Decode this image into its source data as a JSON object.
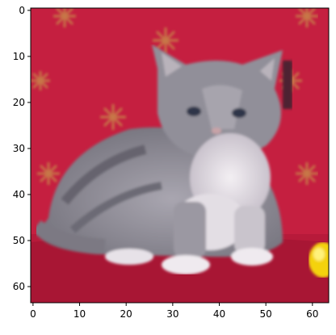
{
  "image": {
    "subject": "kitten-photo",
    "pixel_resolution": [
      64,
      64
    ],
    "colors": {
      "background_red": "#c51f40",
      "pattern_gold": "#c8864a",
      "fur_gray": "#8e8c96",
      "fur_white": "#ece8ee",
      "toy_yellow": "#f4d20a"
    }
  },
  "chart_data": {
    "type": "heatmap",
    "xlim": [
      -0.5,
      63.5
    ],
    "ylim": [
      63.5,
      -0.5
    ],
    "x_ticks": [
      0,
      10,
      20,
      30,
      40,
      50,
      60
    ],
    "y_ticks": [
      0,
      10,
      20,
      30,
      40,
      50,
      60
    ],
    "x_tick_labels": [
      "0",
      "10",
      "20",
      "30",
      "40",
      "50",
      "60"
    ],
    "y_tick_labels": [
      "0",
      "10",
      "20",
      "30",
      "40",
      "50",
      "60"
    ]
  }
}
